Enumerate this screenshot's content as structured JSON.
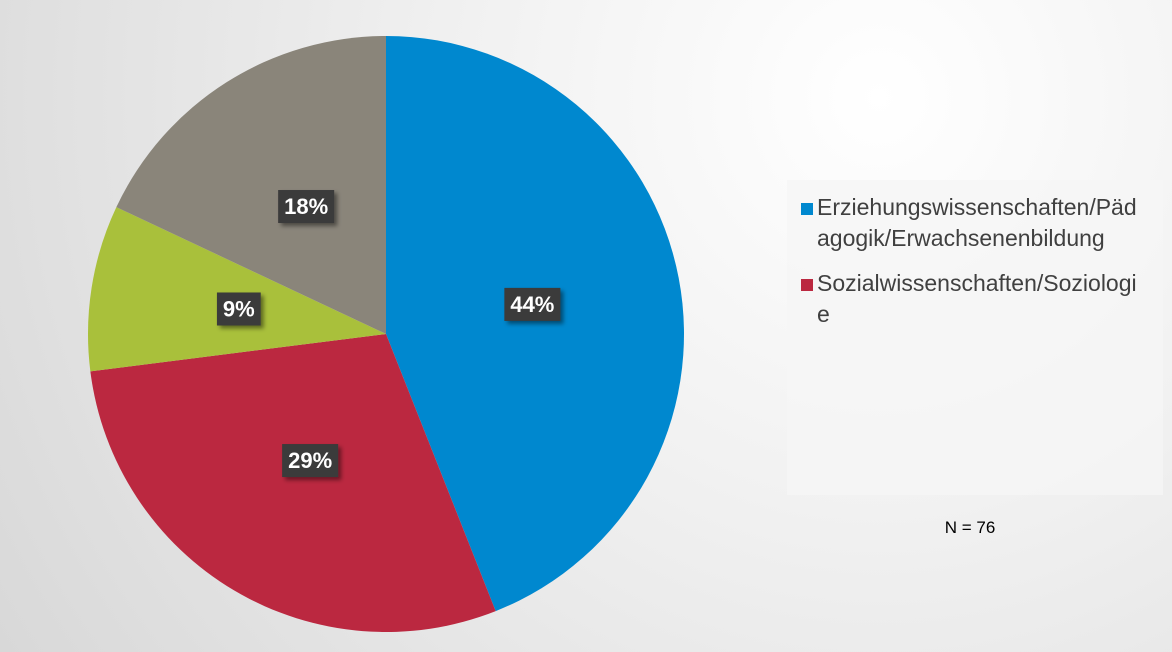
{
  "chart_data": {
    "type": "pie",
    "categories": [
      "Erziehungswissenschaften/Pädagogik/Erwachsenenbildung",
      "Sozialwissenschaften/Soziologie",
      null,
      null
    ],
    "values": [
      44,
      29,
      9,
      18
    ],
    "value_labels": [
      "44%",
      "29%",
      "9%",
      "18%"
    ],
    "colors": [
      "#0088cf",
      "#bb2840",
      "#a9c03b",
      "#8a857a"
    ],
    "annotation": "N = 76"
  }
}
